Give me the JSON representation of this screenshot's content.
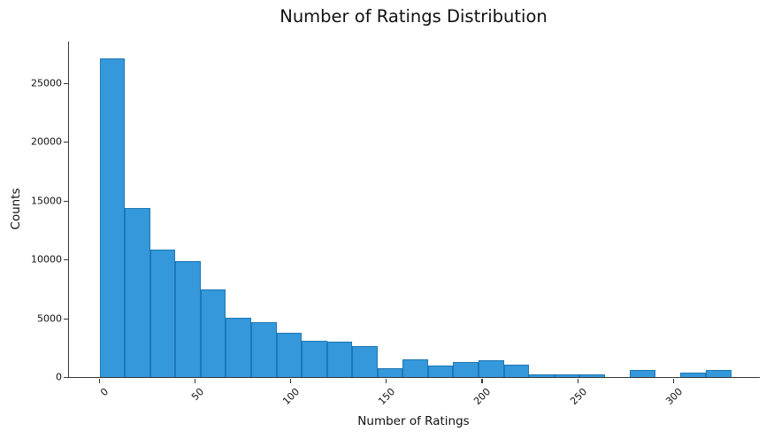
{
  "figure": {
    "background": "#ffffff"
  },
  "chart_data": {
    "type": "bar",
    "subtype": "histogram",
    "title": "Number of Ratings Distribution",
    "xlabel": "Number of Ratings",
    "ylabel": "Counts",
    "bin_start": 0,
    "bin_width": 13.2,
    "counts": [
      27100,
      14400,
      10800,
      9850,
      7450,
      5050,
      4650,
      3750,
      3100,
      3000,
      2600,
      750,
      1500,
      1000,
      1300,
      1400,
      1050,
      230,
      230,
      230,
      0,
      620,
      0,
      350,
      640
    ],
    "xticks": [
      "0",
      "50",
      "100",
      "150",
      "200",
      "250",
      "300"
    ],
    "xtick_values": [
      0,
      50,
      100,
      150,
      200,
      250,
      300
    ],
    "xtick_rotation_deg": 45,
    "yticks": [
      "0",
      "5000",
      "10000",
      "15000",
      "20000",
      "25000"
    ],
    "ytick_values": [
      0,
      5000,
      10000,
      15000,
      20000,
      25000
    ],
    "xlim": [
      -16,
      345
    ],
    "ylim": [
      0,
      28500
    ],
    "grid": false,
    "legend": null,
    "spines": [
      "left",
      "bottom"
    ]
  },
  "colors": {
    "bar_fill": "#3498db",
    "bar_edge": "#1f77b4",
    "axis": "#363636",
    "text": "#111111",
    "background": "#ffffff"
  }
}
